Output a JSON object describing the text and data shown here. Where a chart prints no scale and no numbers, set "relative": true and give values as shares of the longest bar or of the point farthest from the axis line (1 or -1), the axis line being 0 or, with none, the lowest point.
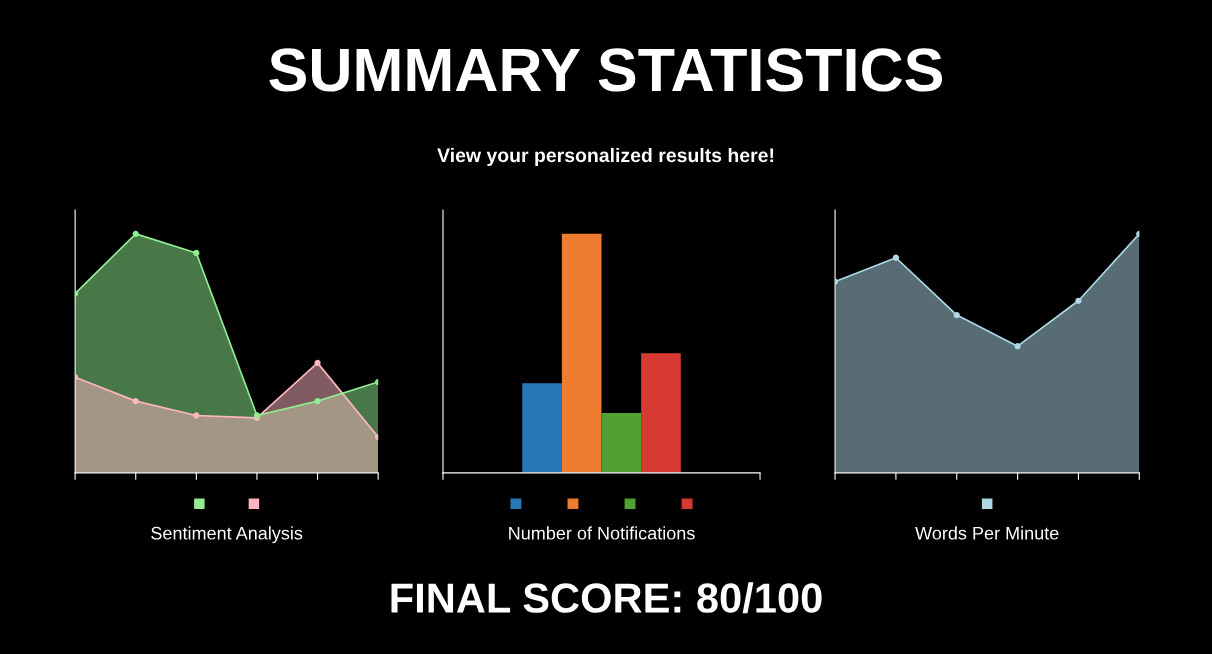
{
  "chart_data": [
    {
      "type": "other",
      "title": "SUMMARY STATISTICS",
      "subtitle": "View your personalized results here!",
      "annotations": [
        "FINAL SCORE: 80/100"
      ]
    },
    {
      "type": "area",
      "relative": true,
      "xlabel": "Sentiment Analysis",
      "categories": [
        null,
        null,
        null,
        null,
        null,
        null
      ],
      "marker": "circle",
      "series": [
        {
          "color": "#90ee90",
          "values": [
            0.75,
            1,
            0.92,
            0.24,
            0.3,
            0.38
          ]
        },
        {
          "color": "#ffb6c1",
          "values": [
            0.4,
            0.3,
            0.24,
            0.23,
            0.46,
            0.15
          ]
        }
      ]
    },
    {
      "type": "bar",
      "relative": true,
      "xlabel": "Number of Notifications",
      "categories": [
        null
      ],
      "series": [
        {
          "color": "#2878b8",
          "values": [
            0.375
          ]
        },
        {
          "color": "#ee7d32",
          "values": [
            1
          ]
        },
        {
          "color": "#53a032",
          "values": [
            0.25
          ]
        },
        {
          "color": "#d73a32",
          "values": [
            0.5
          ]
        }
      ]
    },
    {
      "type": "area",
      "relative": true,
      "xlabel": "Words Per Minute",
      "categories": [
        null,
        null,
        null,
        null,
        null,
        null
      ],
      "marker": "circle",
      "series": [
        {
          "color": "#add8e6",
          "values": [
            0.8,
            0.9,
            0.66,
            0.53,
            0.72,
            1
          ]
        }
      ]
    }
  ]
}
